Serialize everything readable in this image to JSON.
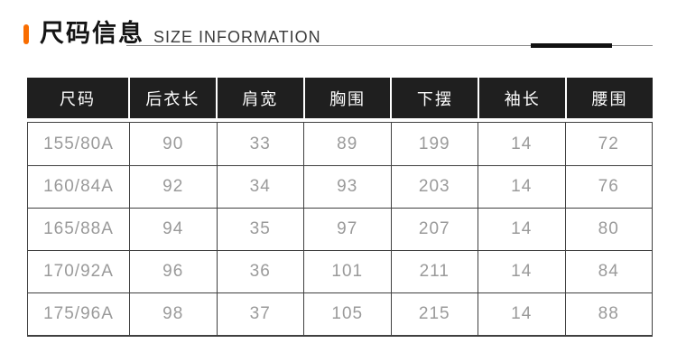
{
  "header": {
    "title_cn": "尺码信息",
    "title_en": "SIZE INFORMATION"
  },
  "colors": {
    "accent": "#f96d00",
    "title_text": "#141414",
    "subtitle_text": "#3c3c3c",
    "rule": "#8a8a8a",
    "rule_accent": "#111111",
    "table_header_bg": "#1f1f1f",
    "table_header_text": "#fdfdfd",
    "table_cell_text": "#9a9a9a",
    "table_border": "#404040",
    "background": "#ffffff"
  },
  "chart_data": {
    "type": "table",
    "title": "尺码信息 SIZE INFORMATION",
    "columns": [
      "尺码",
      "后衣长",
      "肩宽",
      "胸围",
      "下摆",
      "袖长",
      "腰围"
    ],
    "rows": [
      [
        "155/80A",
        "90",
        "33",
        "89",
        "199",
        "14",
        "72"
      ],
      [
        "160/84A",
        "92",
        "34",
        "93",
        "203",
        "14",
        "76"
      ],
      [
        "165/88A",
        "94",
        "35",
        "97",
        "207",
        "14",
        "80"
      ],
      [
        "170/92A",
        "96",
        "36",
        "101",
        "211",
        "14",
        "84"
      ],
      [
        "175/96A",
        "98",
        "37",
        "105",
        "215",
        "14",
        "88"
      ]
    ]
  }
}
